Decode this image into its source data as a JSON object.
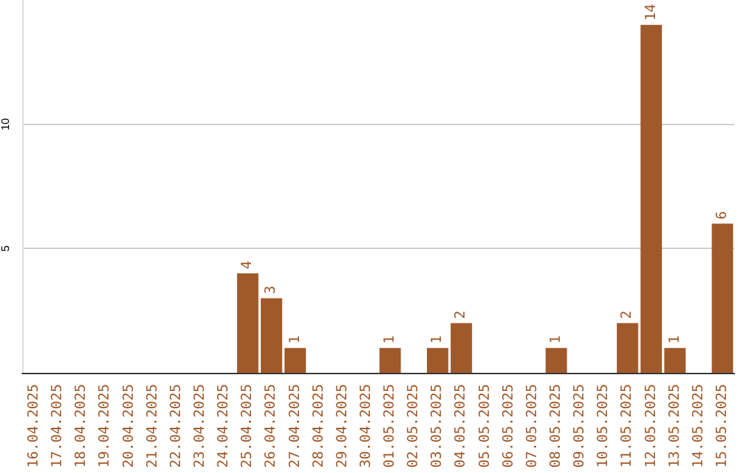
{
  "chart_data": {
    "type": "bar",
    "categories": [
      "16.04.2025",
      "17.04.2025",
      "18.04.2025",
      "19.04.2025",
      "20.04.2025",
      "21.04.2025",
      "22.04.2025",
      "23.04.2025",
      "24.04.2025",
      "25.04.2025",
      "26.04.2025",
      "27.04.2025",
      "28.04.2025",
      "29.04.2025",
      "30.04.2025",
      "01.05.2025",
      "02.05.2025",
      "03.05.2025",
      "04.05.2025",
      "05.05.2025",
      "06.05.2025",
      "07.05.2025",
      "08.05.2025",
      "09.05.2025",
      "10.05.2025",
      "11.05.2025",
      "12.05.2025",
      "13.05.2025",
      "14.05.2025",
      "15.05.2025"
    ],
    "values": [
      0,
      0,
      0,
      0,
      0,
      0,
      0,
      0,
      0,
      4,
      3,
      1,
      0,
      0,
      0,
      1,
      0,
      1,
      2,
      0,
      0,
      0,
      1,
      0,
      0,
      2,
      14,
      1,
      0,
      6
    ],
    "value_labels": [
      null,
      null,
      null,
      null,
      null,
      null,
      null,
      null,
      null,
      "4",
      "3",
      "1",
      null,
      null,
      null,
      "1",
      null,
      "1",
      "2",
      null,
      null,
      null,
      "1",
      null,
      null,
      "2",
      "14",
      "1",
      null,
      "6"
    ],
    "color": "#a0592a",
    "ylim": [
      0,
      15
    ],
    "yticks": [
      5,
      10
    ],
    "grid": "y"
  }
}
